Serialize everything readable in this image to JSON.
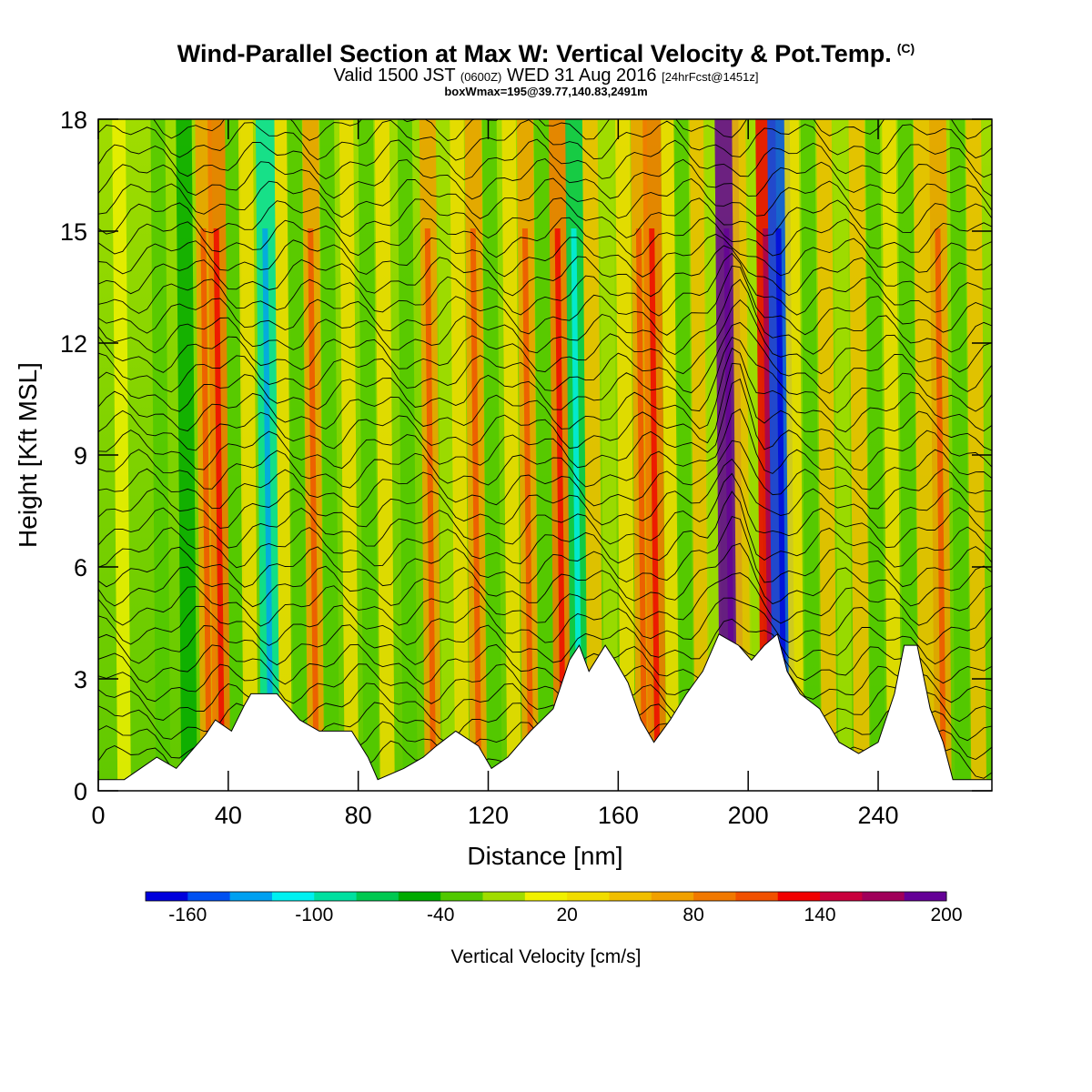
{
  "header": {
    "title": "Wind-Parallel Section at Max W: Vertical Velocity & Pot.Temp.",
    "title_mark": "(C)",
    "valid_prefix": "Valid 1500 JST",
    "valid_z": "(0600Z)",
    "valid_date": "WED 31 Aug 2016",
    "forecast": "[24hrFcst@1451z]",
    "box_info": "boxWmax=195@39.77,140.83,2491m"
  },
  "chart_data": {
    "type": "heatmap",
    "xlabel": "Distance [nm]",
    "ylabel": "Height [Kft MSL]",
    "xlim": [
      0,
      275
    ],
    "ylim": [
      0,
      18
    ],
    "xticks": [
      0,
      40,
      80,
      120,
      160,
      200,
      240
    ],
    "yticks": [
      0,
      3,
      6,
      9,
      12,
      15,
      18
    ],
    "colorbar": {
      "label": "Vertical Velocity [cm/s]",
      "tick_labels": [
        "-160",
        "-100",
        "-40",
        "20",
        "80",
        "140",
        "200"
      ],
      "colors": [
        "#0000dc",
        "#0050f0",
        "#00a0f0",
        "#00f0f0",
        "#00e0a0",
        "#00c850",
        "#00aa00",
        "#50c800",
        "#a0dc00",
        "#f0f000",
        "#f0dc00",
        "#f0be00",
        "#f0a000",
        "#f07800",
        "#f05000",
        "#f00000",
        "#c8003c",
        "#a0005a",
        "#640096"
      ]
    },
    "wmax": {
      "value": 195,
      "units": "cm/s",
      "distance_nm": 195
    },
    "terrain_kft": [
      [
        0,
        0.3
      ],
      [
        8,
        0.3
      ],
      [
        18,
        0.9
      ],
      [
        24,
        0.6
      ],
      [
        33,
        1.5
      ],
      [
        36,
        1.9
      ],
      [
        41,
        1.6
      ],
      [
        45,
        2.3
      ],
      [
        47,
        2.6
      ],
      [
        55,
        2.6
      ],
      [
        62,
        1.9
      ],
      [
        68,
        1.6
      ],
      [
        78,
        1.6
      ],
      [
        83,
        0.9
      ],
      [
        86,
        0.3
      ],
      [
        94,
        0.6
      ],
      [
        100,
        0.9
      ],
      [
        104,
        1.2
      ],
      [
        110,
        1.6
      ],
      [
        117,
        1.2
      ],
      [
        121,
        0.6
      ],
      [
        126,
        0.9
      ],
      [
        133,
        1.6
      ],
      [
        140,
        2.2
      ],
      [
        145,
        3.5
      ],
      [
        148,
        3.9
      ],
      [
        151,
        3.2
      ],
      [
        156,
        3.9
      ],
      [
        159,
        3.5
      ],
      [
        163,
        2.9
      ],
      [
        167,
        1.9
      ],
      [
        171,
        1.3
      ],
      [
        176,
        1.9
      ],
      [
        181,
        2.6
      ],
      [
        186,
        3.2
      ],
      [
        191,
        4.2
      ],
      [
        197,
        3.9
      ],
      [
        201,
        3.5
      ],
      [
        205,
        3.9
      ],
      [
        209,
        4.2
      ],
      [
        212,
        3.2
      ],
      [
        216,
        2.6
      ],
      [
        222,
        2.2
      ],
      [
        228,
        1.3
      ],
      [
        234,
        1.0
      ],
      [
        240,
        1.3
      ],
      [
        245,
        2.6
      ],
      [
        248,
        3.9
      ],
      [
        252,
        3.9
      ],
      [
        256,
        2.2
      ],
      [
        260,
        1.3
      ],
      [
        263,
        0.3
      ],
      [
        275,
        0.3
      ]
    ],
    "w_columns": [
      {
        "x": 8,
        "w": 10
      },
      {
        "x": 20,
        "w": -30
      },
      {
        "x": 28,
        "w": -50
      },
      {
        "x": 34,
        "w": 60
      },
      {
        "x": 38,
        "w": 80
      },
      {
        "x": 43,
        "w": -40
      },
      {
        "x": 47,
        "w": 30
      },
      {
        "x": 53,
        "w": -100
      },
      {
        "x": 58,
        "w": 20
      },
      {
        "x": 62,
        "w": -40
      },
      {
        "x": 67,
        "w": 60
      },
      {
        "x": 72,
        "w": -30
      },
      {
        "x": 78,
        "w": 20
      },
      {
        "x": 84,
        "w": -40
      },
      {
        "x": 89,
        "w": 30
      },
      {
        "x": 96,
        "w": -30
      },
      {
        "x": 103,
        "w": 60
      },
      {
        "x": 108,
        "w": -20
      },
      {
        "x": 112,
        "w": 20
      },
      {
        "x": 117,
        "w": 70
      },
      {
        "x": 122,
        "w": -30
      },
      {
        "x": 128,
        "w": 20
      },
      {
        "x": 133,
        "w": 60
      },
      {
        "x": 138,
        "w": -40
      },
      {
        "x": 143,
        "w": 80
      },
      {
        "x": 148,
        "w": -70
      },
      {
        "x": 153,
        "w": 40
      },
      {
        "x": 158,
        "w": -20
      },
      {
        "x": 163,
        "w": 30
      },
      {
        "x": 168,
        "w": 60
      },
      {
        "x": 172,
        "w": 90
      },
      {
        "x": 177,
        "w": 20
      },
      {
        "x": 181,
        "w": -30
      },
      {
        "x": 186,
        "w": 40
      },
      {
        "x": 190,
        "w": -20
      },
      {
        "x": 195,
        "w": 195
      },
      {
        "x": 199,
        "w": 40
      },
      {
        "x": 203,
        "w": -20
      },
      {
        "x": 207,
        "w": 120
      },
      {
        "x": 211,
        "w": -160
      },
      {
        "x": 215,
        "w": 30
      },
      {
        "x": 220,
        "w": -30
      },
      {
        "x": 225,
        "w": 40
      },
      {
        "x": 230,
        "w": -20
      },
      {
        "x": 235,
        "w": 50
      },
      {
        "x": 240,
        "w": -30
      },
      {
        "x": 245,
        "w": 20
      },
      {
        "x": 250,
        "w": -40
      },
      {
        "x": 255,
        "w": 50
      },
      {
        "x": 260,
        "w": 70
      },
      {
        "x": 266,
        "w": -40
      },
      {
        "x": 271,
        "w": 40
      }
    ]
  }
}
